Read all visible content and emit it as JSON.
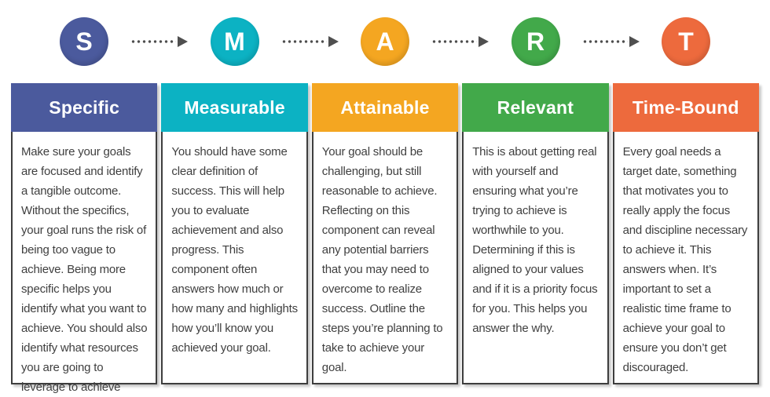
{
  "colors": {
    "arrow": "#4f4f4f",
    "body_text": "#3f3f3f",
    "cell_border": "#3e3e3e"
  },
  "columns": [
    {
      "letter": "S",
      "title": "Specific",
      "color": "#4b5a9d",
      "description": "Make sure your goals are focused and identify a tangible outcome. Without the specifics, your goal runs the risk of being too vague to achieve. Being more specific helps you identify what you want to achieve. You should also identify what resources you are going to leverage to achieve success."
    },
    {
      "letter": "M",
      "title": "Measurable",
      "color": "#0cb2c3",
      "description": "You should have some clear definition of success. This will help you to evaluate achievement and also progress. This component often answers how much or how many and highlights how you’ll know you achieved your goal."
    },
    {
      "letter": "A",
      "title": "Attainable",
      "color": "#f4a621",
      "description": "Your goal should be challenging, but still reasonable to achieve. Reflecting on this component can reveal any potential barriers that you may need to overcome to realize success. Outline the steps you’re planning to take to achieve your goal."
    },
    {
      "letter": "R",
      "title": "Relevant",
      "color": "#42a94a",
      "description": "This is about getting real with yourself and ensuring what you’re trying to achieve is worthwhile to you. Determining if this is aligned to your values and if it is a priority focus for you. This helps you answer the why."
    },
    {
      "letter": "T",
      "title": "Time-Bound",
      "color": "#ed6a3d",
      "description": "Every goal needs a target date, something that motivates you to really apply the focus and discipline necessary to achieve it. This answers when. It’s important to set a realistic time frame to achieve your goal to ensure you don’t get discouraged."
    }
  ]
}
